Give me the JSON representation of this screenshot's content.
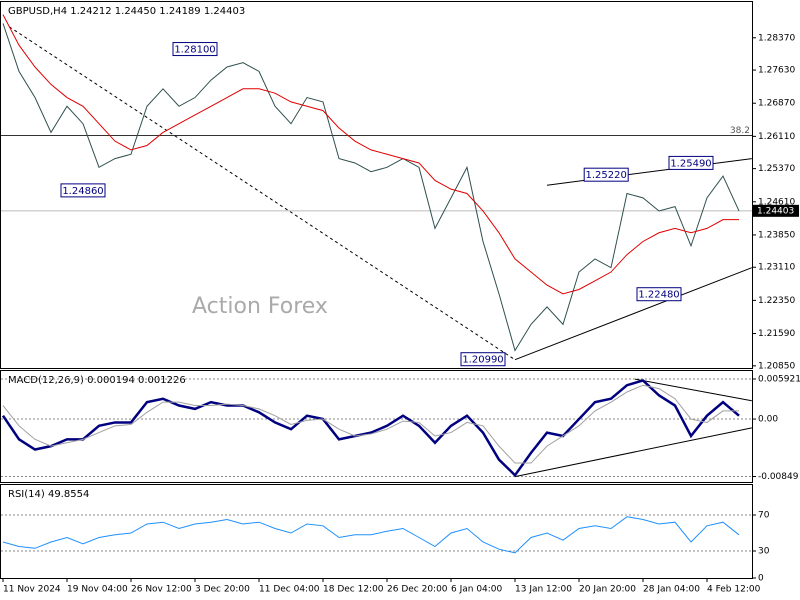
{
  "chart_data": [
    {
      "type": "line",
      "title": "GBPUSD,H4  1.24212 1.24450 1.24189 1.24403",
      "watermark": "Action Forex",
      "categories": [
        "11 Nov 2024",
        null,
        null,
        null,
        "19 Nov 04:00",
        null,
        null,
        null,
        "26 Nov 12:00",
        null,
        null,
        null,
        "3 Dec 20:00",
        null,
        null,
        null,
        "11 Dec 04:00",
        null,
        null,
        null,
        "18 Dec 12:00",
        null,
        null,
        null,
        "26 Dec 20:00",
        null,
        null,
        null,
        "6 Jan 04:00",
        null,
        null,
        null,
        "13 Jan 12:00",
        null,
        null,
        null,
        "20 Jan 20:00",
        null,
        null,
        null,
        "28 Jan 04:00",
        null,
        null,
        null,
        "4 Feb 12:00",
        null,
        null
      ],
      "series": [
        {
          "color": "#2f4f4f",
          "values": [
            1.287,
            1.276,
            1.27,
            1.262,
            1.268,
            1.264,
            1.254,
            1.256,
            1.257,
            1.268,
            1.272,
            1.268,
            1.27,
            1.274,
            1.277,
            1.278,
            1.276,
            1.268,
            1.264,
            1.27,
            1.269,
            1.256,
            1.255,
            1.253,
            1.254,
            1.256,
            1.254,
            1.24,
            1.247,
            1.254,
            1.237,
            1.225,
            1.212,
            1.218,
            1.222,
            1.218,
            1.23,
            1.233,
            1.231,
            1.248,
            1.247,
            1.244,
            1.245,
            1.236,
            1.247,
            1.252,
            1.244
          ]
        },
        {
          "color": "#e00000",
          "values": [
            1.289,
            1.282,
            1.277,
            1.273,
            1.27,
            1.268,
            1.264,
            1.26,
            1.258,
            1.259,
            1.262,
            1.264,
            1.266,
            1.268,
            1.27,
            1.272,
            1.272,
            1.271,
            1.269,
            1.268,
            1.267,
            1.263,
            1.26,
            1.258,
            1.257,
            1.256,
            1.255,
            1.251,
            1.249,
            1.248,
            1.244,
            1.239,
            1.233,
            1.23,
            1.227,
            1.225,
            1.226,
            1.228,
            1.23,
            1.234,
            1.237,
            1.239,
            1.24,
            1.239,
            1.24,
            1.242,
            1.242
          ]
        }
      ],
      "ylim": [
        1.208,
        1.2919
      ],
      "yticks": [
        {
          "value": 1.2085,
          "label": "1.20850"
        },
        {
          "value": 1.2159,
          "label": "1.21590"
        },
        {
          "value": 1.2235,
          "label": "1.22350"
        },
        {
          "value": 1.2311,
          "label": "1.23110"
        },
        {
          "value": 1.2385,
          "label": "1.23850"
        },
        {
          "value": 1.2461,
          "label": "1.24610"
        },
        {
          "value": 1.2537,
          "label": "1.25370"
        },
        {
          "value": 1.2611,
          "label": "1.26110"
        },
        {
          "value": 1.2687,
          "label": "1.26870"
        },
        {
          "value": 1.2763,
          "label": "1.27630"
        },
        {
          "value": 1.2837,
          "label": "1.28370"
        }
      ],
      "fib_level": {
        "value": 1.2613,
        "label": "38.2"
      },
      "last_price": {
        "value": 1.24403,
        "label": "1.24403"
      },
      "annotations": [
        {
          "text": "1.28100",
          "x": 12,
          "y": 1.281
        },
        {
          "text": "1.24860",
          "x": 5,
          "y": 1.2486
        },
        {
          "text": "1.25220",
          "x": 37.7,
          "y": 1.2522
        },
        {
          "text": "1.25490",
          "x": 43,
          "y": 1.2549
        },
        {
          "text": "1.22480",
          "x": 41,
          "y": 1.2248
        },
        {
          "text": "1.20990",
          "x": 30,
          "y": 1.2099
        }
      ],
      "trendlines": [
        {
          "x": [
            0.4,
            32
          ],
          "y": [
            1.2862,
            1.2099
          ],
          "dashed": true
        },
        {
          "x": [
            32,
            46.8
          ],
          "y": [
            1.2099,
            1.231
          ],
          "dashed": false
        },
        {
          "x": [
            34,
            46.8
          ],
          "y": [
            1.2499,
            1.256
          ],
          "dashed": false
        }
      ]
    },
    {
      "type": "line",
      "title": "MACD(12,26,9) 0.000194 0.001226",
      "series": [
        {
          "color": "#000080",
          "values": [
            0.0005,
            -0.003,
            -0.0045,
            -0.004,
            -0.003,
            -0.003,
            -0.001,
            -0.0005,
            -0.0005,
            0.0025,
            0.003,
            0.002,
            0.0015,
            0.0025,
            0.002,
            0.002,
            0.001,
            -0.0005,
            -0.0015,
            0.0005,
            0.0,
            -0.003,
            -0.0025,
            -0.002,
            -0.001,
            0.0005,
            -0.001,
            -0.0035,
            -0.001,
            0.0005,
            -0.002,
            -0.006,
            -0.0083,
            -0.005,
            -0.002,
            -0.0025,
            0.0,
            0.0025,
            0.003,
            0.005,
            0.0057,
            0.0035,
            0.002,
            -0.0025,
            0.0005,
            0.0025,
            0.0005
          ]
        },
        {
          "color": "#a0a0a0",
          "values": [
            0.002,
            -0.001,
            -0.003,
            -0.004,
            -0.0035,
            -0.003,
            -0.002,
            -0.001,
            -0.0008,
            0.001,
            0.0025,
            0.0025,
            0.002,
            0.002,
            0.0022,
            0.002,
            0.0015,
            0.0005,
            -0.0008,
            -0.0002,
            0.0,
            -0.0015,
            -0.0025,
            -0.0022,
            -0.0015,
            -0.0003,
            -0.0005,
            -0.0025,
            -0.002,
            -0.0005,
            -0.001,
            -0.004,
            -0.0065,
            -0.0065,
            -0.004,
            -0.0025,
            -0.001,
            0.0012,
            0.0025,
            0.004,
            0.005,
            0.0045,
            0.003,
            0.0,
            -0.0005,
            0.0012,
            0.0012
          ]
        }
      ],
      "ylim": [
        -0.0093,
        0.0071
      ],
      "yticks": [
        -0.00849,
        {
          "value": 0,
          "label": "0.00"
        },
        0.005921
      ],
      "trendlines": [
        {
          "x": [
            39.5,
            46.8
          ],
          "y": [
            0.0059,
            0.0027
          ],
          "dashed": false
        },
        {
          "x": [
            32,
            46.8
          ],
          "y": [
            -0.0085,
            -0.0013
          ],
          "dashed": false
        }
      ]
    },
    {
      "type": "line",
      "title": "RSI(14) 49.8554",
      "series": [
        {
          "color": "#1e90ff",
          "values": [
            40,
            35,
            33,
            40,
            45,
            38,
            45,
            48,
            50,
            60,
            62,
            55,
            60,
            62,
            65,
            60,
            62,
            55,
            50,
            60,
            58,
            45,
            48,
            48,
            52,
            55,
            45,
            35,
            50,
            55,
            40,
            32,
            28,
            45,
            50,
            42,
            55,
            58,
            55,
            68,
            65,
            60,
            62,
            40,
            58,
            62,
            48
          ]
        }
      ],
      "ylim": [
        0,
        100
      ],
      "yticks": [
        0,
        30,
        70
      ]
    }
  ]
}
